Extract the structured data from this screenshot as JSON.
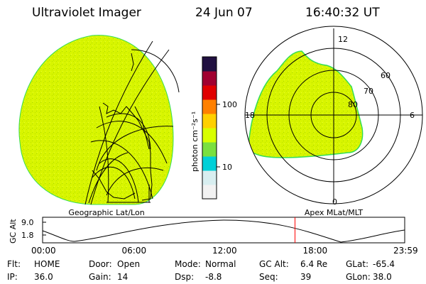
{
  "header": {
    "instrument": "Ultraviolet Imager",
    "date": "24 Jun 07",
    "time": "16:40:32 UT"
  },
  "colorbar": {
    "unit_label": "photon cm⁻²s⁻¹",
    "ticks": [
      "100",
      "10"
    ],
    "scale": "log",
    "colors": [
      "#f2f2f2",
      "#d8eef0",
      "#00d0d8",
      "#7ae040",
      "#d8ff00",
      "#ffd000",
      "#ff8000",
      "#e00000",
      "#a00030",
      "#201040"
    ]
  },
  "left_panel": {
    "caption": "Geographic Lat/Lon"
  },
  "right_panel": {
    "caption": "Apex MLat/MLT",
    "mlt_labels": [
      "12",
      "18",
      "6",
      "0"
    ],
    "lat_labels": [
      "60",
      "70",
      "80"
    ]
  },
  "altitude_plot": {
    "ylabel": "GC Alt",
    "y_ticks": [
      "9.0",
      "1.8"
    ],
    "x_ticks": [
      "00:00",
      "06:00",
      "12:00",
      "18:00",
      "23:59"
    ],
    "current_time_fraction": 0.697
  },
  "footer": {
    "row1": [
      {
        "k": "Flt:",
        "v": "HOME"
      },
      {
        "k": "Door:",
        "v": "Open"
      },
      {
        "k": "Mode:",
        "v": "Normal"
      },
      {
        "k": "GC Alt:",
        "v": "6.4 Re"
      },
      {
        "k": "GLat:",
        "v": "-65.4"
      }
    ],
    "row2": [
      {
        "k": "IP:",
        "v": "36.0"
      },
      {
        "k": "Gain:",
        "v": "14"
      },
      {
        "k": "Dsp:",
        "v": "-8.8"
      },
      {
        "k": "Seq:",
        "v": "39"
      },
      {
        "k": "GLon:",
        "v": "38.0"
      }
    ]
  },
  "palette": {
    "aurora": "#d8f500",
    "edge": "#33dd55",
    "marker": "#ff0000"
  }
}
